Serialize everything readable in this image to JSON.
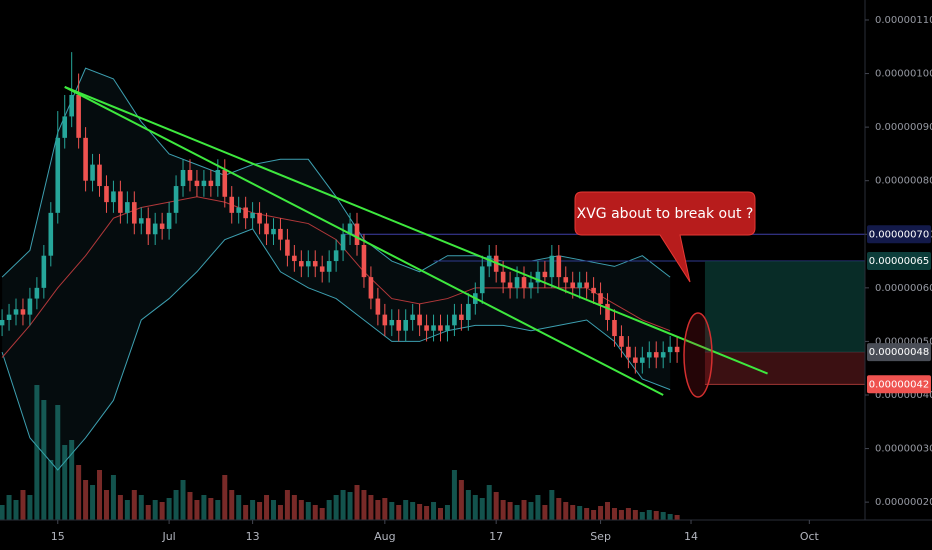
{
  "chart_data": {
    "type": "candlestick",
    "xlim": [
      -0.3,
      124
    ],
    "ylim": [
      1.6665e-07,
      1.1373e-06
    ],
    "xticks": [
      {
        "value": 8,
        "label": "15"
      },
      {
        "value": 24,
        "label": "Jul"
      },
      {
        "value": 36,
        "label": "13"
      },
      {
        "value": 55,
        "label": "Aug"
      },
      {
        "value": 71,
        "label": "17"
      },
      {
        "value": 86,
        "label": "Sep"
      },
      {
        "value": 99,
        "label": "14"
      },
      {
        "value": 116,
        "label": "Oct"
      }
    ],
    "yticks": [
      {
        "value": 2e-07,
        "label": "0.00000020"
      },
      {
        "value": 3e-07,
        "label": "0.00000030"
      },
      {
        "value": 4e-07,
        "label": "0.00000040"
      },
      {
        "value": 5e-07,
        "label": "0.00000050"
      },
      {
        "value": 6e-07,
        "label": "0.00000060"
      },
      {
        "value": 7e-07,
        "label": "0.00000070"
      },
      {
        "value": 8e-07,
        "label": "0.00000080"
      },
      {
        "value": 9e-07,
        "label": "0.00000090"
      },
      {
        "value": 1e-06,
        "label": "0.00000100"
      },
      {
        "value": 1.1e-06,
        "label": "0.00000110"
      }
    ],
    "up_color": "#26a69a",
    "down_color": "#ef5350",
    "open": [
      5.3e-07,
      5.4e-07,
      5.5e-07,
      5.6e-07,
      5.5e-07,
      5.8e-07,
      6e-07,
      6.6e-07,
      7.4e-07,
      8.8e-07,
      9.2e-07,
      9.6e-07,
      8.8e-07,
      8e-07,
      8.3e-07,
      7.9e-07,
      7.6e-07,
      7.8e-07,
      7.4e-07,
      7.6e-07,
      7.2e-07,
      7.3e-07,
      7e-07,
      7.2e-07,
      7.1e-07,
      7.4e-07,
      7.9e-07,
      8.2e-07,
      8e-07,
      7.9e-07,
      8e-07,
      7.9e-07,
      8.2e-07,
      7.7e-07,
      7.4e-07,
      7.5e-07,
      7.3e-07,
      7.4e-07,
      7.2e-07,
      7e-07,
      7.1e-07,
      6.9e-07,
      6.6e-07,
      6.5e-07,
      6.4e-07,
      6.5e-07,
      6.4e-07,
      6.3e-07,
      6.5e-07,
      6.7e-07,
      7e-07,
      7.2e-07,
      6.8e-07,
      6.2e-07,
      5.8e-07,
      5.5e-07,
      5.3e-07,
      5.4e-07,
      5.2e-07,
      5.4e-07,
      5.5e-07,
      5.3e-07,
      5.2e-07,
      5.3e-07,
      5.2e-07,
      5.3e-07,
      5.5e-07,
      5.4e-07,
      5.7e-07,
      5.9e-07,
      6.4e-07,
      6.6e-07,
      6.3e-07,
      6.1e-07,
      6e-07,
      6.2e-07,
      6e-07,
      6.1e-07,
      6.3e-07,
      6.2e-07,
      6.6e-07,
      6.2e-07,
      6.1e-07,
      6e-07,
      6.1e-07,
      6e-07,
      5.9e-07,
      5.7e-07,
      5.4e-07,
      5.1e-07,
      4.9e-07,
      4.7e-07,
      4.6e-07,
      4.7e-07,
      4.8e-07,
      4.7e-07,
      4.8e-07,
      4.9e-07
    ],
    "high": [
      5.6e-07,
      5.7e-07,
      5.8e-07,
      5.8e-07,
      6e-07,
      6.2e-07,
      6.8e-07,
      7.6e-07,
      9.3e-07,
      9.6e-07,
      1.04e-06,
      1e-06,
      9e-07,
      8.5e-07,
      8.5e-07,
      8.1e-07,
      8e-07,
      8e-07,
      7.8e-07,
      7.8e-07,
      7.5e-07,
      7.5e-07,
      7.4e-07,
      7.4e-07,
      7.6e-07,
      8.1e-07,
      8.4e-07,
      8.4e-07,
      8.2e-07,
      8.2e-07,
      8.2e-07,
      8.4e-07,
      8.4e-07,
      7.9e-07,
      7.7e-07,
      7.7e-07,
      7.6e-07,
      7.6e-07,
      7.4e-07,
      7.3e-07,
      7.3e-07,
      7.1e-07,
      6.8e-07,
      6.7e-07,
      6.7e-07,
      6.7e-07,
      6.6e-07,
      6.7e-07,
      6.9e-07,
      7.2e-07,
      7.4e-07,
      7.4e-07,
      7e-07,
      6.4e-07,
      6e-07,
      5.7e-07,
      5.6e-07,
      5.6e-07,
      5.6e-07,
      5.7e-07,
      5.7e-07,
      5.5e-07,
      5.5e-07,
      5.5e-07,
      5.5e-07,
      5.7e-07,
      5.7e-07,
      5.9e-07,
      6.1e-07,
      6.6e-07,
      6.8e-07,
      6.8e-07,
      6.5e-07,
      6.3e-07,
      6.4e-07,
      6.4e-07,
      6.3e-07,
      6.5e-07,
      6.5e-07,
      6.8e-07,
      6.8e-07,
      6.4e-07,
      6.3e-07,
      6.3e-07,
      6.3e-07,
      6.2e-07,
      6.1e-07,
      5.9e-07,
      5.6e-07,
      5.3e-07,
      5.1e-07,
      4.9e-07,
      4.9e-07,
      5e-07,
      5e-07,
      5e-07,
      5.1e-07,
      5.1e-07
    ],
    "low": [
      5.1e-07,
      5.2e-07,
      5.3e-07,
      5.3e-07,
      5.3e-07,
      5.6e-07,
      5.8e-07,
      6.4e-07,
      7.2e-07,
      8.6e-07,
      9e-07,
      8.6e-07,
      7.8e-07,
      7.8e-07,
      7.7e-07,
      7.4e-07,
      7.4e-07,
      7.2e-07,
      7.2e-07,
      7e-07,
      7e-07,
      6.8e-07,
      6.8e-07,
      6.9e-07,
      6.9e-07,
      7.2e-07,
      7.7e-07,
      7.8e-07,
      7.7e-07,
      7.7e-07,
      7.7e-07,
      7.7e-07,
      7.5e-07,
      7.2e-07,
      7.2e-07,
      7.1e-07,
      7.1e-07,
      7e-07,
      6.8e-07,
      6.8e-07,
      6.7e-07,
      6.4e-07,
      6.3e-07,
      6.2e-07,
      6.2e-07,
      6.2e-07,
      6.1e-07,
      6.1e-07,
      6.3e-07,
      6.5e-07,
      6.8e-07,
      6.6e-07,
      6e-07,
      5.6e-07,
      5.3e-07,
      5.1e-07,
      5.1e-07,
      5e-07,
      5e-07,
      5.2e-07,
      5.1e-07,
      5e-07,
      5e-07,
      5e-07,
      5e-07,
      5.1e-07,
      5.2e-07,
      5.2e-07,
      5.5e-07,
      5.7e-07,
      6.2e-07,
      6.1e-07,
      5.9e-07,
      5.8e-07,
      5.8e-07,
      5.8e-07,
      5.8e-07,
      5.9e-07,
      6e-07,
      6e-07,
      6e-07,
      5.9e-07,
      5.8e-07,
      5.8e-07,
      5.8e-07,
      5.7e-07,
      5.5e-07,
      5.2e-07,
      4.9e-07,
      4.7e-07,
      4.5e-07,
      4.4e-07,
      4.4e-07,
      4.5e-07,
      4.5e-07,
      4.5e-07,
      4.6e-07,
      4.6e-07
    ],
    "close": [
      5.4e-07,
      5.5e-07,
      5.6e-07,
      5.5e-07,
      5.8e-07,
      6e-07,
      6.6e-07,
      7.4e-07,
      8.8e-07,
      9.2e-07,
      9.6e-07,
      8.8e-07,
      8e-07,
      8.3e-07,
      7.9e-07,
      7.6e-07,
      7.8e-07,
      7.4e-07,
      7.6e-07,
      7.2e-07,
      7.3e-07,
      7e-07,
      7.2e-07,
      7.1e-07,
      7.4e-07,
      7.9e-07,
      8.2e-07,
      8e-07,
      7.9e-07,
      8e-07,
      7.9e-07,
      8.2e-07,
      7.7e-07,
      7.4e-07,
      7.5e-07,
      7.3e-07,
      7.4e-07,
      7.2e-07,
      7e-07,
      7.1e-07,
      6.9e-07,
      6.6e-07,
      6.5e-07,
      6.4e-07,
      6.5e-07,
      6.4e-07,
      6.3e-07,
      6.5e-07,
      6.7e-07,
      7e-07,
      7.2e-07,
      6.8e-07,
      6.2e-07,
      5.8e-07,
      5.5e-07,
      5.3e-07,
      5.4e-07,
      5.2e-07,
      5.4e-07,
      5.5e-07,
      5.3e-07,
      5.2e-07,
      5.3e-07,
      5.2e-07,
      5.3e-07,
      5.5e-07,
      5.4e-07,
      5.7e-07,
      5.9e-07,
      6.4e-07,
      6.6e-07,
      6.3e-07,
      6.1e-07,
      6e-07,
      6.2e-07,
      6e-07,
      6.1e-07,
      6.3e-07,
      6.2e-07,
      6.6e-07,
      6.2e-07,
      6.1e-07,
      6e-07,
      6.1e-07,
      6e-07,
      5.9e-07,
      5.7e-07,
      5.4e-07,
      5.1e-07,
      4.9e-07,
      4.7e-07,
      4.6e-07,
      4.7e-07,
      4.8e-07,
      4.7e-07,
      4.8e-07,
      4.9e-07,
      4.8e-07
    ],
    "volume": [
      15,
      25,
      20,
      30,
      25,
      135,
      120,
      60,
      115,
      75,
      80,
      55,
      40,
      35,
      50,
      30,
      45,
      25,
      20,
      30,
      25,
      15,
      20,
      18,
      22,
      30,
      40,
      28,
      20,
      25,
      22,
      20,
      45,
      30,
      25,
      15,
      20,
      18,
      25,
      20,
      15,
      30,
      25,
      20,
      18,
      15,
      12,
      20,
      25,
      30,
      28,
      35,
      30,
      25,
      20,
      22,
      18,
      15,
      20,
      18,
      16,
      14,
      18,
      12,
      15,
      50,
      40,
      30,
      25,
      22,
      35,
      28,
      20,
      18,
      15,
      20,
      18,
      25,
      15,
      30,
      22,
      18,
      15,
      14,
      12,
      10,
      14,
      18,
      12,
      10,
      12,
      10,
      8,
      10,
      9,
      8,
      6,
      5
    ],
    "bands": {
      "x": [
        0,
        4,
        8,
        12,
        16,
        20,
        24,
        28,
        32,
        36,
        40,
        44,
        48,
        52,
        56,
        60,
        64,
        68,
        72,
        76,
        80,
        84,
        88,
        92,
        96
      ],
      "upper": [
        6.2e-07,
        6.7e-07,
        8.9e-07,
        1.01e-06,
        9.9e-07,
        9.1e-07,
        8.5e-07,
        8.3e-07,
        8.1e-07,
        8.3e-07,
        8.4e-07,
        8.4e-07,
        7.7e-07,
        6.9e-07,
        6.5e-07,
        6.3e-07,
        6.6e-07,
        6.6e-07,
        6.5e-07,
        6.5e-07,
        6.6e-07,
        6.5e-07,
        6.4e-07,
        6.6e-07,
        6.2e-07
      ],
      "middle": [
        4.7e-07,
        5.3e-07,
        6e-07,
        6.6e-07,
        7.3e-07,
        7.5e-07,
        7.6e-07,
        7.7e-07,
        7.6e-07,
        7.4e-07,
        7.3e-07,
        7.2e-07,
        6.9e-07,
        6.3e-07,
        5.8e-07,
        5.7e-07,
        5.8e-07,
        6e-07,
        6e-07,
        6e-07,
        6e-07,
        6e-07,
        5.7e-07,
        5.4e-07,
        5.2e-07
      ],
      "lower": [
        4.8e-07,
        3.2e-07,
        2.6e-07,
        3.2e-07,
        3.9e-07,
        5.4e-07,
        5.8e-07,
        6.3e-07,
        6.9e-07,
        7.1e-07,
        6.3e-07,
        6e-07,
        5.8e-07,
        5.4e-07,
        5e-07,
        5e-07,
        5.2e-07,
        5.3e-07,
        5.3e-07,
        5.2e-07,
        5.3e-07,
        5.4e-07,
        5e-07,
        4.3e-07,
        4.1e-07
      ],
      "band_color": "#3d9fb0",
      "middle_color": "#b2383a"
    },
    "trendlines": [
      {
        "x": [
          9,
          110
        ],
        "y": [
          9.75e-07,
          4.4e-07
        ],
        "color": "#3ee83e"
      },
      {
        "x": [
          9,
          95
        ],
        "y": [
          9.75e-07,
          4e-07
        ],
        "color": "#3ee83e"
      }
    ],
    "levels": [
      {
        "value": 7e-07,
        "label": "0.00000070",
        "color": "#3f3fa8",
        "label_bg": "#131a4a",
        "from": 49
      },
      {
        "value": 6.5e-07,
        "label": "0.00000065",
        "color": "#2f3a8f",
        "label_bg": "#0c3d3a",
        "from": 62
      },
      {
        "value": 4.8e-07,
        "label": "0.00000048",
        "color": "#555b66",
        "label_bg": "#4a4e57",
        "from": 101
      },
      {
        "value": 4.2e-07,
        "label": "0.00000042",
        "color": "#ef5350",
        "label_bg": "#ef5350",
        "from": 101
      }
    ],
    "annotation": "XVG about to break out ?"
  }
}
